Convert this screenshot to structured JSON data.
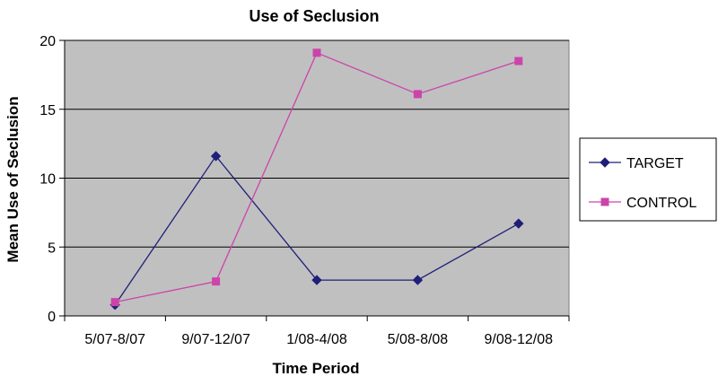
{
  "chart_data": {
    "type": "line",
    "title": "Use of Seclusion",
    "xlabel": "Time Period",
    "ylabel": "Mean Use of Seclusion",
    "categories": [
      "5/07-8/07",
      "9/07-12/07",
      "1/08-4/08",
      "5/08-8/08",
      "9/08-12/08"
    ],
    "ylim": [
      0,
      20
    ],
    "yticks": [
      0,
      5,
      10,
      15,
      20
    ],
    "grid": true,
    "legend_position": "right",
    "plot_background": "#c0c0c0",
    "series": [
      {
        "name": "TARGET",
        "values": [
          0.8,
          11.6,
          2.6,
          2.6,
          6.7
        ],
        "color": "#1f1f7a",
        "marker": "diamond"
      },
      {
        "name": "CONTROL",
        "values": [
          1.0,
          2.5,
          19.1,
          16.1,
          18.5
        ],
        "color": "#cc44aa",
        "marker": "square"
      }
    ]
  }
}
